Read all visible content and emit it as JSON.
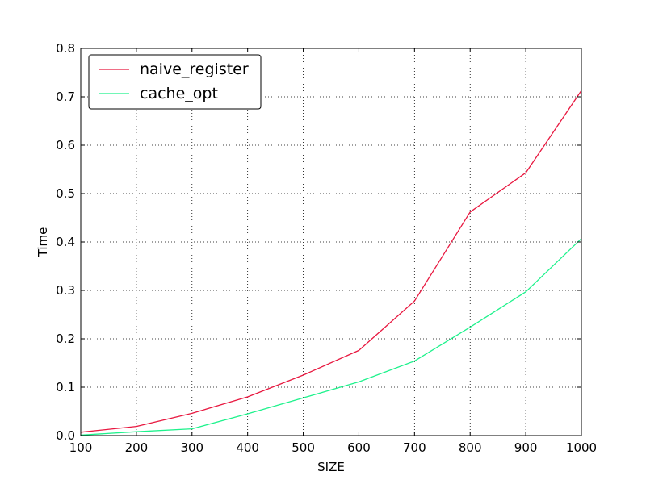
{
  "chart_data": {
    "type": "line",
    "title": "",
    "xlabel": "SIZE",
    "ylabel": "Time",
    "xlim": [
      100,
      1000
    ],
    "ylim": [
      0.0,
      0.8
    ],
    "xticks": [
      100,
      200,
      300,
      400,
      500,
      600,
      700,
      800,
      900,
      1000
    ],
    "xtick_labels": [
      "100",
      "200",
      "300",
      "400",
      "500",
      "600",
      "700",
      "800",
      "900",
      "1000"
    ],
    "yticks": [
      0.0,
      0.1,
      0.2,
      0.3,
      0.4,
      0.5,
      0.6,
      0.7,
      0.8
    ],
    "ytick_labels": [
      "0.0",
      "0.1",
      "0.2",
      "0.3",
      "0.4",
      "0.5",
      "0.6",
      "0.7",
      "0.8"
    ],
    "grid": true,
    "legend_position": "top-left",
    "x": [
      100,
      200,
      300,
      400,
      500,
      600,
      700,
      800,
      900,
      1000
    ],
    "series": [
      {
        "name": "naive_register",
        "color": "#e8173f",
        "values": [
          0.007,
          0.019,
          0.046,
          0.08,
          0.125,
          0.176,
          0.278,
          0.462,
          0.543,
          0.713
        ]
      },
      {
        "name": "cache_opt",
        "color": "#1ef28c",
        "values": [
          0.001,
          0.008,
          0.014,
          0.045,
          0.078,
          0.111,
          0.154,
          0.224,
          0.297,
          0.407
        ]
      }
    ]
  }
}
